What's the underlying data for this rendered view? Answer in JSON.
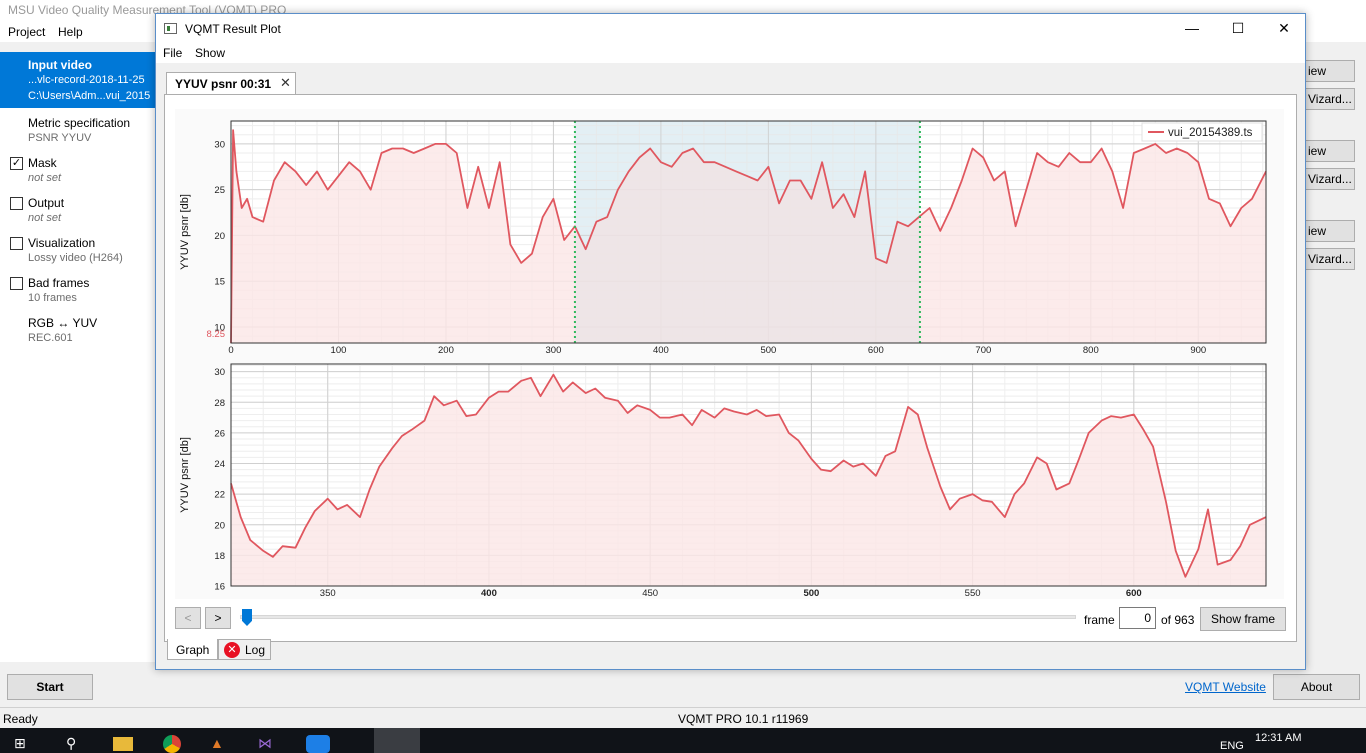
{
  "main_window": {
    "title": "MSU Video Quality Measurement Tool (VQMT) PRO",
    "menu": [
      "Project",
      "Help"
    ],
    "steps": [
      {
        "heading": "Input video",
        "line1": "...vlc-record-2018-11-25",
        "line2": "C:\\Users\\Adm...vui_2015",
        "checked": null,
        "selected": true
      },
      {
        "heading": "Metric specification",
        "line1": "PSNR YYUV",
        "checked": null,
        "selected": false
      },
      {
        "heading": "Mask",
        "line1": "not set",
        "checked": true,
        "selected": false
      },
      {
        "heading": "Output",
        "line1": "not set",
        "checked": false,
        "selected": false
      },
      {
        "heading": "Visualization",
        "line1": "Lossy video (H264)",
        "checked": false,
        "selected": false
      },
      {
        "heading": "Bad frames",
        "line1": "10 frames",
        "checked": false,
        "selected": false
      },
      {
        "heading": "RGB ↔ YUV",
        "line1": "REC.601",
        "checked": null,
        "selected": false
      }
    ],
    "side_buttons": [
      "iew",
      "Vizard...",
      "iew",
      "Vizard...",
      "iew",
      "Vizard..."
    ],
    "start_label": "Start",
    "website_link": "VQMT Website",
    "about_label": "About",
    "status_left": "Ready",
    "status_center": "VQMT PRO 10.1 r11969"
  },
  "plot_window": {
    "title": "VQMT Result Plot",
    "menu": [
      "File",
      "Show"
    ],
    "tab_label": "YYUV psnr 00:31",
    "tab_close": "✕",
    "win_min": "—",
    "win_max": "☐",
    "win_close": "✕",
    "nav_prev": "<",
    "nav_next": ">",
    "frame_label": "frame",
    "frame_value": "0",
    "frame_of": "of 963",
    "frame_total": 963,
    "show_frame_label": "Show frame",
    "bottom_tabs": [
      "Graph",
      "Log"
    ]
  },
  "taskbar": {
    "time": "12:31 AM",
    "lang": "ENG",
    "icons": [
      "windows-icon",
      "search-icon",
      "file-explorer-icon",
      "chrome-icon",
      "matlab-icon",
      "visual-studio-icon",
      "zalo-icon",
      "vqmt-icon"
    ]
  },
  "colors": {
    "series": "#e0575f",
    "series_fill": "#fbe6e6",
    "selection_fill": "#eaf6fb",
    "selection_border": "#2eb85c",
    "accent": "#0078d7"
  },
  "chart_data": [
    {
      "type": "area",
      "ylabel": "YYUV psnr [db]",
      "xlim": [
        0,
        963
      ],
      "ylim": [
        8.25,
        32.5
      ],
      "yticks": [
        10,
        15,
        20,
        25,
        30
      ],
      "ymin_label": "8.25",
      "xticks": [
        0,
        100,
        200,
        300,
        400,
        500,
        600,
        700,
        800,
        900
      ],
      "grid": true,
      "legend": "top-right",
      "selection": [
        320,
        641
      ],
      "series": [
        {
          "name": "vui_20154389.ts",
          "x": [
            0,
            2,
            5,
            10,
            15,
            20,
            30,
            40,
            50,
            60,
            70,
            80,
            90,
            100,
            110,
            120,
            130,
            140,
            150,
            160,
            170,
            180,
            190,
            200,
            210,
            220,
            230,
            240,
            250,
            260,
            270,
            280,
            285,
            290,
            300,
            310,
            320,
            330,
            340,
            350,
            360,
            370,
            380,
            390,
            400,
            410,
            420,
            430,
            440,
            450,
            460,
            470,
            480,
            490,
            500,
            510,
            520,
            530,
            540,
            550,
            560,
            570,
            580,
            590,
            600,
            610,
            620,
            630,
            640,
            650,
            660,
            670,
            680,
            690,
            700,
            710,
            720,
            730,
            740,
            750,
            760,
            770,
            780,
            790,
            800,
            810,
            820,
            830,
            840,
            850,
            860,
            870,
            880,
            890,
            900,
            910,
            920,
            930,
            940,
            950,
            963
          ],
          "values": [
            8.25,
            31.5,
            27,
            23,
            24,
            22,
            21.5,
            26,
            28,
            27,
            25.5,
            27,
            25,
            26.5,
            28,
            27,
            25,
            29,
            29.5,
            29.5,
            29,
            29.5,
            30,
            30,
            29,
            23,
            27.5,
            23,
            28,
            19,
            17,
            18,
            20,
            22,
            24,
            19.5,
            21,
            18.5,
            21.5,
            22,
            25,
            27,
            28.5,
            29.5,
            28,
            27.5,
            29,
            29.5,
            28,
            28,
            27.5,
            27,
            26.5,
            26,
            27.5,
            23.5,
            26,
            26,
            24,
            28,
            23,
            24.5,
            22,
            27,
            17.5,
            17,
            21.5,
            21,
            22,
            23,
            20.5,
            23,
            26,
            29.5,
            28.5,
            26,
            27,
            21,
            25,
            29,
            28,
            27.5,
            29,
            28,
            28,
            29.5,
            27,
            23,
            29,
            29.5,
            30,
            29,
            29.5,
            29,
            28,
            24,
            23.5,
            21,
            23,
            24,
            27
          ]
        }
      ]
    },
    {
      "type": "area",
      "ylabel": "YYUV psnr [db]",
      "xlim": [
        320,
        641
      ],
      "ylim": [
        16,
        30.5
      ],
      "yticks": [
        16,
        18,
        20,
        22,
        24,
        26,
        28,
        30
      ],
      "xticks": [
        350,
        400,
        450,
        500,
        550,
        600
      ],
      "grid": true,
      "series": [
        {
          "name": "vui_20154389.ts",
          "x": [
            320,
            323,
            326,
            330,
            333,
            336,
            340,
            343,
            346,
            350,
            353,
            356,
            360,
            363,
            366,
            370,
            373,
            376,
            380,
            383,
            386,
            390,
            393,
            396,
            400,
            403,
            406,
            410,
            413,
            416,
            420,
            423,
            426,
            430,
            433,
            436,
            440,
            443,
            446,
            450,
            453,
            456,
            460,
            463,
            466,
            470,
            473,
            476,
            480,
            483,
            486,
            490,
            493,
            496,
            500,
            503,
            506,
            510,
            513,
            516,
            520,
            523,
            526,
            530,
            533,
            536,
            540,
            543,
            546,
            550,
            553,
            556,
            560,
            563,
            566,
            570,
            573,
            576,
            580,
            583,
            586,
            590,
            593,
            596,
            600,
            603,
            606,
            610,
            613,
            616,
            620,
            623,
            626,
            630,
            633,
            636,
            641
          ],
          "values": [
            22.7,
            20.5,
            19,
            18.3,
            17.9,
            18.6,
            18.5,
            19.8,
            20.9,
            21.7,
            21,
            21.3,
            20.5,
            22.3,
            23.8,
            25,
            25.8,
            26.2,
            26.8,
            28.4,
            27.8,
            28.1,
            27.1,
            27.2,
            28.3,
            28.7,
            28.7,
            29.4,
            29.6,
            28.4,
            29.8,
            28.7,
            29.3,
            28.6,
            28.9,
            28.3,
            28.1,
            27.3,
            27.8,
            27.5,
            27,
            27,
            27.2,
            26.5,
            27.5,
            27,
            27.6,
            27.4,
            27.2,
            27.5,
            27.1,
            27.2,
            26,
            25.5,
            24.3,
            23.6,
            23.5,
            24.2,
            23.8,
            24,
            23.2,
            24.5,
            24.8,
            27.7,
            27.2,
            25,
            22.5,
            21,
            21.7,
            22,
            21.6,
            21.5,
            20.5,
            22,
            22.7,
            24.4,
            24,
            22.3,
            22.7,
            24.3,
            26,
            26.8,
            27.1,
            27,
            27.2,
            26.2,
            25.1,
            21.5,
            18.3,
            16.6,
            18.4,
            21,
            17.4,
            17.7,
            18.6,
            20,
            20.5
          ]
        }
      ]
    }
  ]
}
